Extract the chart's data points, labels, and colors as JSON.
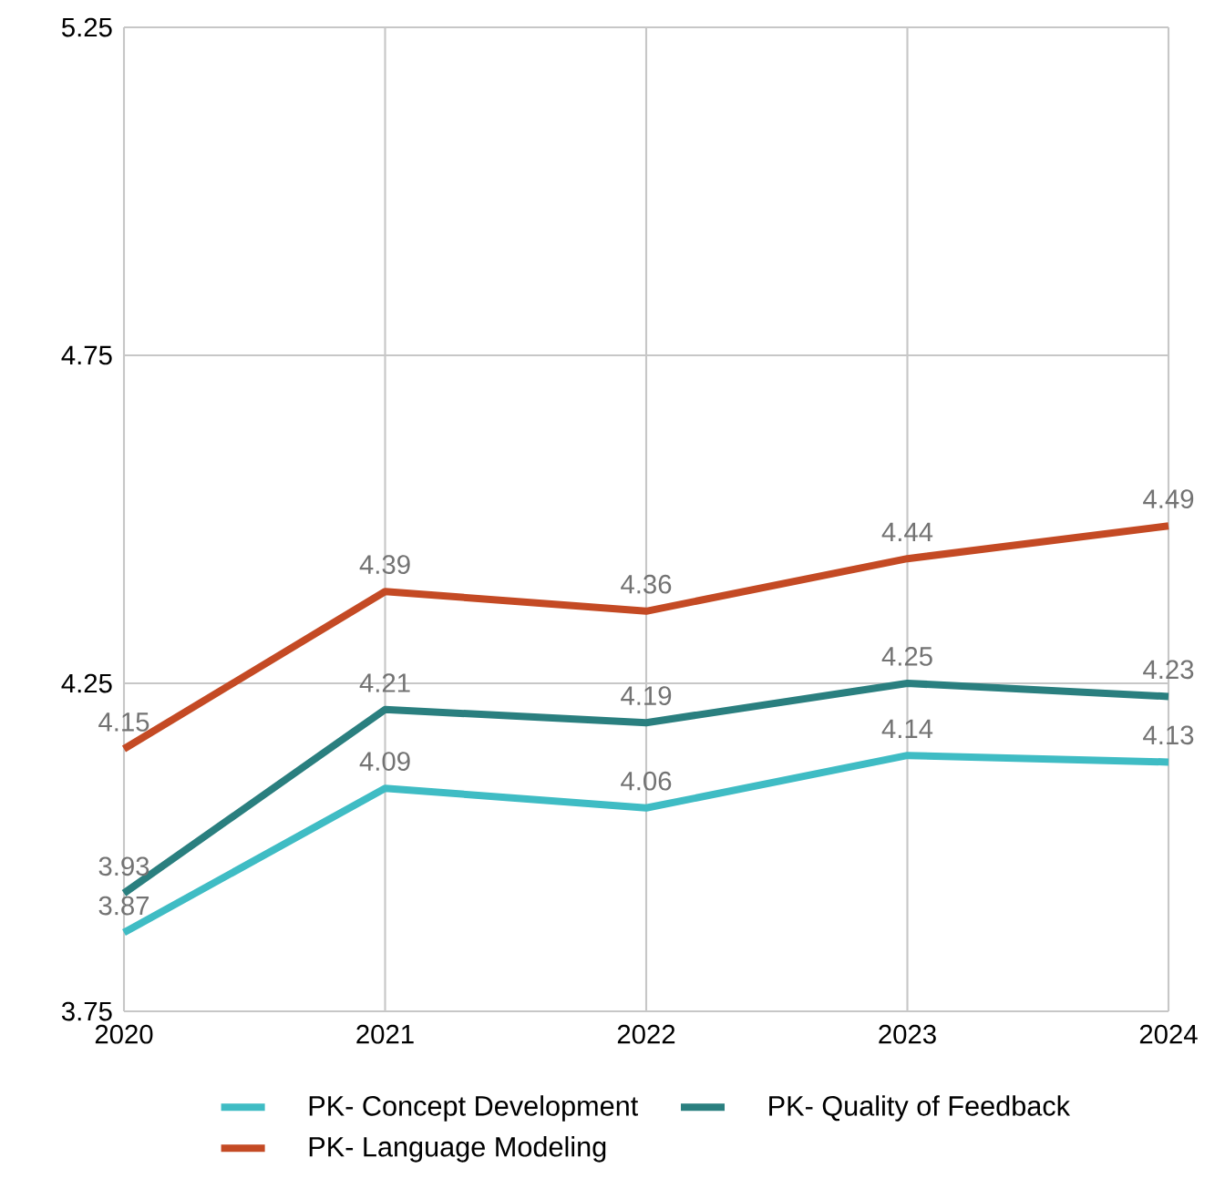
{
  "chart_data": {
    "type": "line",
    "x": [
      2020,
      2021,
      2022,
      2023,
      2024
    ],
    "xlim": [
      2020,
      2024
    ],
    "xticks": [
      2020,
      2021,
      2022,
      2023,
      2024
    ],
    "ylim": [
      3.75,
      5.25
    ],
    "yticks": [
      3.75,
      4.25,
      4.75,
      5.25
    ],
    "grid": true,
    "legend": "bottom",
    "data_labels": true,
    "marker": "none",
    "line_style": "solid",
    "series": [
      {
        "name": "PK- Concept Development",
        "color": "#3fbcc4",
        "values": [
          3.87,
          4.09,
          4.06,
          4.14,
          4.13
        ]
      },
      {
        "name": "PK- Quality of Feedback",
        "color": "#2a7f7f",
        "values": [
          3.93,
          4.21,
          4.19,
          4.25,
          4.23
        ]
      },
      {
        "name": "PK- Language Modeling",
        "color": "#c44a24",
        "values": [
          4.15,
          4.39,
          4.36,
          4.44,
          4.49
        ]
      }
    ]
  }
}
